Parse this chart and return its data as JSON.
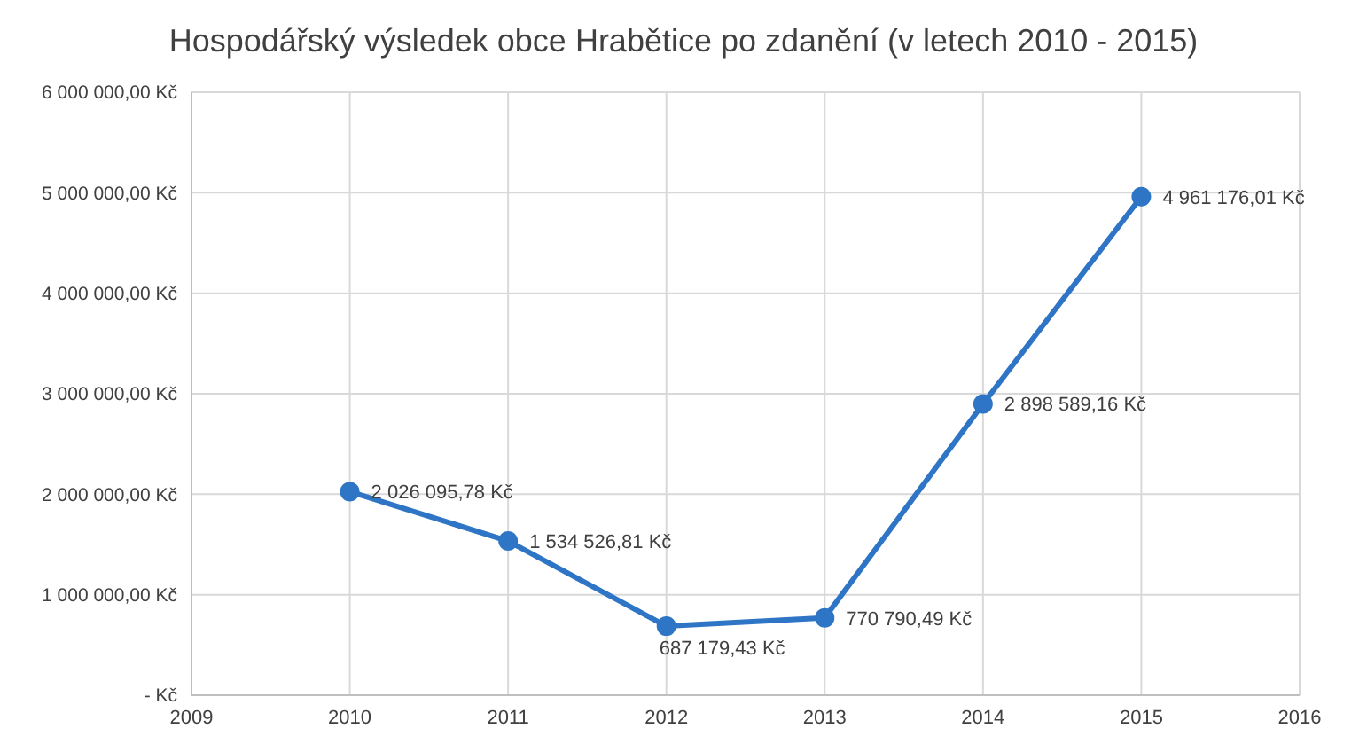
{
  "chart_data": {
    "type": "line",
    "title": "Hospodářský výsledek obce Hrabětice po zdanění (v letech 2010 - 2015)",
    "x": [
      2010,
      2011,
      2012,
      2013,
      2014,
      2015
    ],
    "series": [
      {
        "color": "#2e75c6",
        "values": [
          2026095.78,
          1534526.81,
          687179.43,
          770790.49,
          2898589.16,
          4961176.01
        ],
        "value_labels": [
          "2 026 095,78 Kč",
          "1 534 526,81 Kč",
          "687 179,43 Kč",
          "770 790,49 Kč",
          "2 898 589,16 Kč",
          "4 961 176,01 Kč"
        ]
      }
    ],
    "xlim": [
      2009,
      2016
    ],
    "xticks": [
      2009,
      2010,
      2011,
      2012,
      2013,
      2014,
      2015,
      2016
    ],
    "ylim": [
      0,
      6000000
    ],
    "yticks": [
      {
        "value": 0,
        "label": "-   Kč"
      },
      {
        "value": 1000000,
        "label": "1 000 000,00 Kč"
      },
      {
        "value": 2000000,
        "label": "2 000 000,00 Kč"
      },
      {
        "value": 3000000,
        "label": "3 000 000,00 Kč"
      },
      {
        "value": 4000000,
        "label": "4 000 000,00 Kč"
      },
      {
        "value": 5000000,
        "label": "5 000 000,00 Kč"
      },
      {
        "value": 6000000,
        "label": "6 000 000,00 Kč"
      }
    ],
    "grid": true,
    "marker": "circle",
    "line_style": "solid",
    "legend": false
  }
}
